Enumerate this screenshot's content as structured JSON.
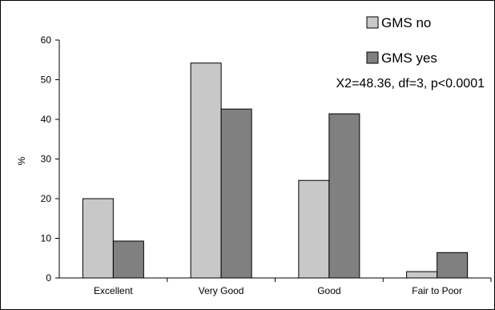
{
  "chart_data": {
    "type": "bar",
    "categories": [
      "Excellent",
      "Very Good",
      "Good",
      "Fair to Poor"
    ],
    "series": [
      {
        "name": "GMS no",
        "values": [
          20,
          54.2,
          24.6,
          1.6
        ],
        "color": "#c8c8c8"
      },
      {
        "name": "GMS yes",
        "values": [
          9.3,
          42.6,
          41.4,
          6.4
        ],
        "color": "#808080"
      }
    ],
    "title": "",
    "xlabel": "",
    "ylabel": "%",
    "ylim": [
      0,
      60
    ],
    "yticks": [
      "0",
      "10",
      "20",
      "30",
      "40",
      "50",
      "60"
    ],
    "grid": false,
    "legend_position": "top-right",
    "annotation": "X2=48.36, df=3, p<0.0001"
  }
}
